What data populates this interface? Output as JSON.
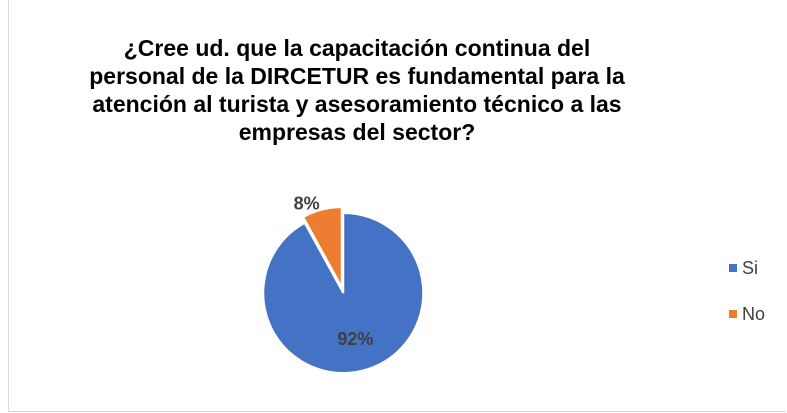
{
  "chart_data": {
    "type": "pie",
    "title": "¿Cree ud. que la capacitación continua del personal de la DIRCETUR es fundamental para la atención al turista y asesoramiento técnico a las empresas del sector?",
    "categories": [
      "Si",
      "No"
    ],
    "values": [
      92,
      8
    ],
    "value_labels": [
      "92%",
      "8%"
    ],
    "colors": [
      "#4472c4",
      "#ed7d31"
    ],
    "legend": "right"
  }
}
